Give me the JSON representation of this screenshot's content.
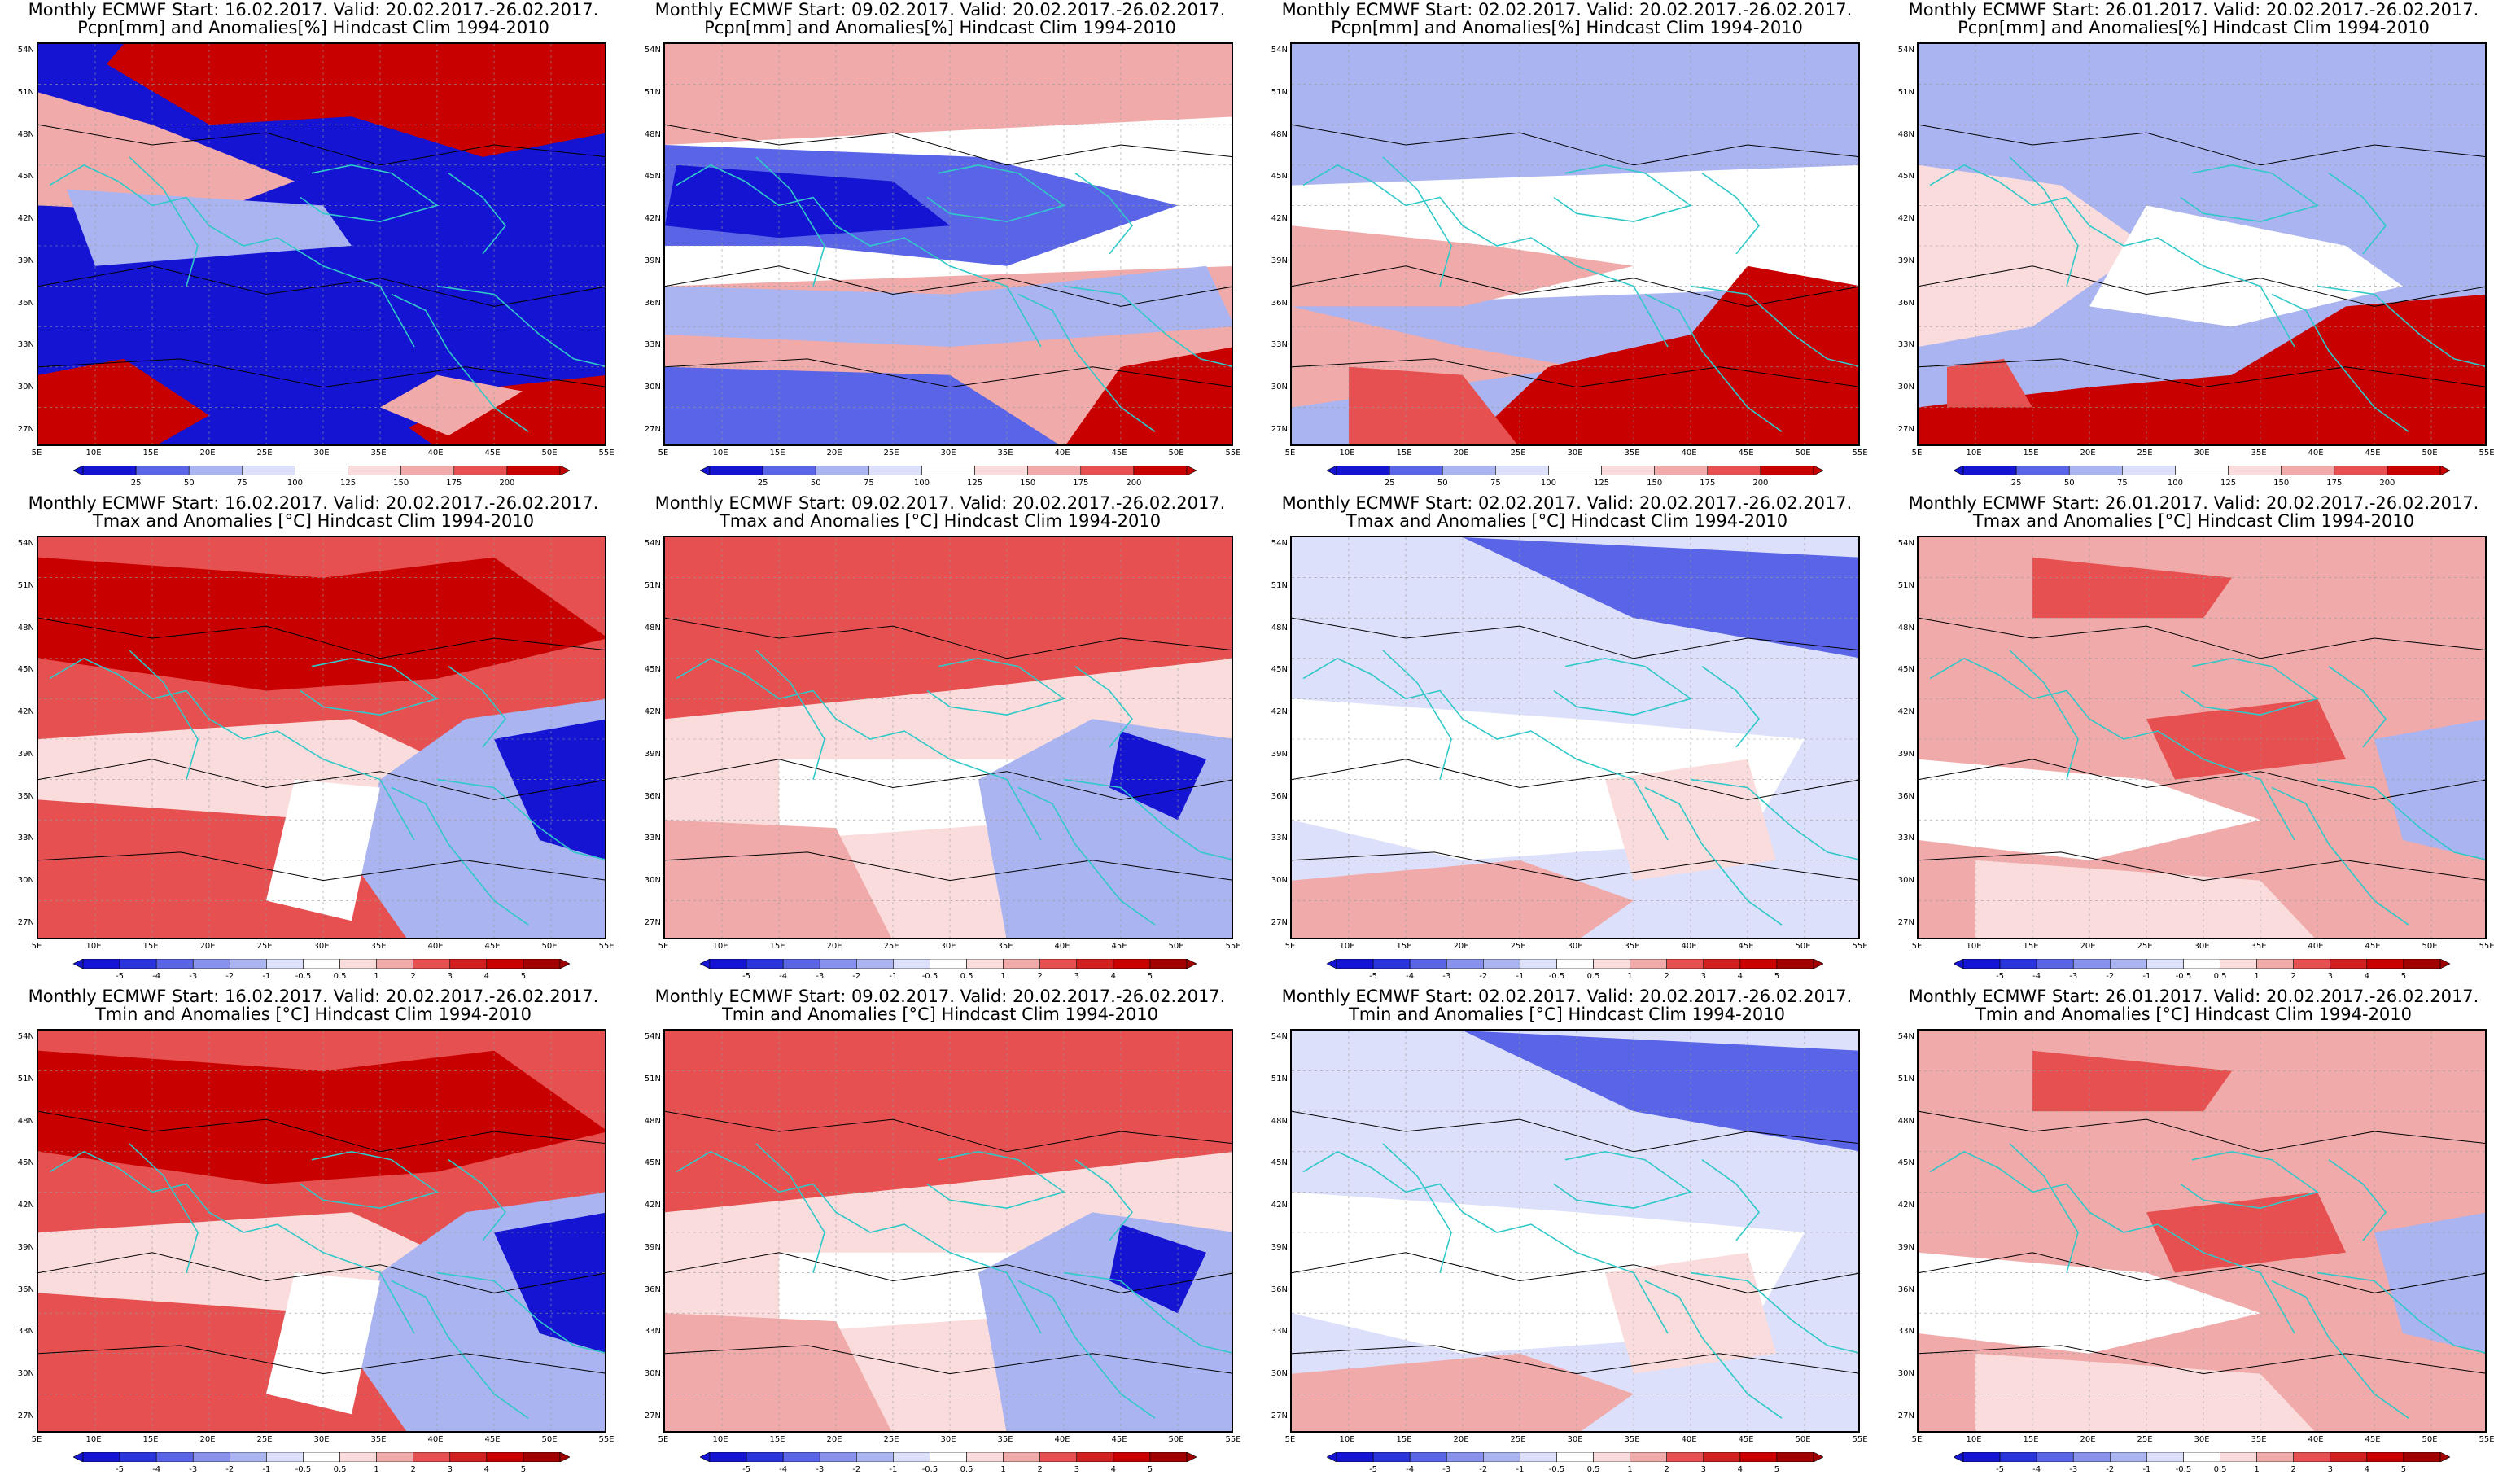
{
  "colors": {
    "deep_blue": "#1414d2",
    "mid_blue": "#5a64e6",
    "light_blue": "#aab4f0",
    "pale_blue": "#dce0fa",
    "white": "#ffffff",
    "pale_red": "#fadcdc",
    "light_red": "#f0aaaa",
    "mid_red": "#e65050",
    "deep_red": "#c80000",
    "coast": "#30c8c8",
    "contour": "#000000"
  },
  "axes": {
    "lat_labels": [
      "54N",
      "51N",
      "48N",
      "45N",
      "42N",
      "39N",
      "36N",
      "33N",
      "30N",
      "27N"
    ],
    "lon_labels": [
      "5E",
      "10E",
      "15E",
      "20E",
      "25E",
      "30E",
      "35E",
      "40E",
      "45E",
      "50E",
      "55E"
    ]
  },
  "colorbars": {
    "precip": [
      "25",
      "50",
      "75",
      "100",
      "125",
      "150",
      "175",
      "200"
    ],
    "temp": [
      "-5",
      "-4",
      "-3",
      "-2",
      "-1",
      "-0.5",
      "0.5",
      "1",
      "2",
      "3",
      "4",
      "5"
    ]
  },
  "panels": [
    {
      "title1": "Monthly ECMWF Start: 16.02.2017. Valid: 20.02.2017.-26.02.2017.",
      "title2": "Pcpn[mm] and Anomalies[%] Hindcast Clim 1994-2010",
      "bar": "precip",
      "pattern": "p1"
    },
    {
      "title1": "Monthly ECMWF Start: 09.02.2017. Valid: 20.02.2017.-26.02.2017.",
      "title2": "Pcpn[mm] and Anomalies[%] Hindcast Clim 1994-2010",
      "bar": "precip",
      "pattern": "p2"
    },
    {
      "title1": "Monthly ECMWF Start: 02.02.2017. Valid: 20.02.2017.-26.02.2017.",
      "title2": "Pcpn[mm] and Anomalies[%] Hindcast Clim 1994-2010",
      "bar": "precip",
      "pattern": "p3"
    },
    {
      "title1": "Monthly ECMWF Start: 26.01.2017. Valid: 20.02.2017.-26.02.2017.",
      "title2": "Pcpn[mm] and Anomalies[%] Hindcast Clim 1994-2010",
      "bar": "precip",
      "pattern": "p4"
    },
    {
      "title1": "Monthly ECMWF Start: 16.02.2017. Valid: 20.02.2017.-26.02.2017.",
      "title2": "Tmax and Anomalies [°C] Hindcast Clim 1994-2010",
      "bar": "temp",
      "pattern": "t1"
    },
    {
      "title1": "Monthly ECMWF Start: 09.02.2017. Valid: 20.02.2017.-26.02.2017.",
      "title2": "Tmax and Anomalies [°C] Hindcast Clim 1994-2010",
      "bar": "temp",
      "pattern": "t2"
    },
    {
      "title1": "Monthly ECMWF Start: 02.02.2017. Valid: 20.02.2017.-26.02.2017.",
      "title2": "Tmax and Anomalies [°C] Hindcast Clim 1994-2010",
      "bar": "temp",
      "pattern": "t3"
    },
    {
      "title1": "Monthly ECMWF Start: 26.01.2017. Valid: 20.02.2017.-26.02.2017.",
      "title2": "Tmax and Anomalies [°C] Hindcast Clim 1994-2010",
      "bar": "temp",
      "pattern": "t4"
    },
    {
      "title1": "Monthly ECMWF Start: 16.02.2017. Valid: 20.02.2017.-26.02.2017.",
      "title2": "Tmin and Anomalies [°C] Hindcast Clim 1994-2010",
      "bar": "temp",
      "pattern": "t1"
    },
    {
      "title1": "Monthly ECMWF Start: 09.02.2017. Valid: 20.02.2017.-26.02.2017.",
      "title2": "Tmin and Anomalies [°C] Hindcast Clim 1994-2010",
      "bar": "temp",
      "pattern": "t2"
    },
    {
      "title1": "Monthly ECMWF Start: 02.02.2017. Valid: 20.02.2017.-26.02.2017.",
      "title2": "Tmin and Anomalies [°C] Hindcast Clim 1994-2010",
      "bar": "temp",
      "pattern": "t3"
    },
    {
      "title1": "Monthly ECMWF Start: 26.01.2017. Valid: 20.02.2017.-26.02.2017.",
      "title2": "Tmin and Anomalies [°C] Hindcast Clim 1994-2010",
      "bar": "temp",
      "pattern": "t4"
    }
  ]
}
